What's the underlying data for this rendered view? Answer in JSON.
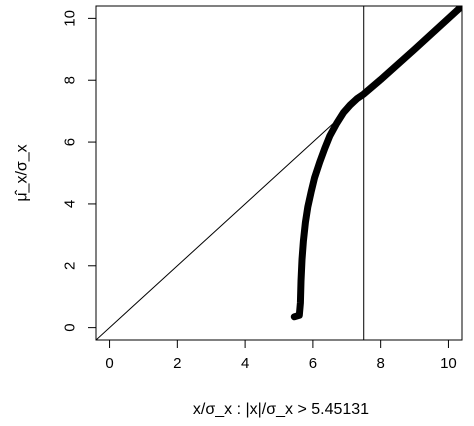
{
  "chart_data": {
    "type": "line",
    "title": "",
    "xlabel": "x/σ_x : |x|/σ_x > 5.45131",
    "ylabel": "μ̂_x/σ_x",
    "xlim": [
      -0.4,
      10.4
    ],
    "ylim": [
      -0.4,
      10.4
    ],
    "x_ticks": [
      0,
      2,
      4,
      6,
      8,
      10
    ],
    "y_ticks": [
      0,
      2,
      4,
      6,
      8,
      10
    ],
    "grid": false,
    "legend": "none",
    "reference_lines": {
      "identity_line": {
        "slope": 1,
        "intercept": 0
      },
      "vertical_line_x": 7.5
    },
    "series": [
      {
        "points": [
          [
            5.45,
            0.35
          ],
          [
            5.6,
            0.4
          ],
          [
            5.63,
            0.8
          ],
          [
            5.65,
            1.5
          ],
          [
            5.68,
            2.2
          ],
          [
            5.72,
            2.8
          ],
          [
            5.78,
            3.4
          ],
          [
            5.85,
            3.9
          ],
          [
            5.95,
            4.4
          ],
          [
            6.05,
            4.85
          ],
          [
            6.2,
            5.35
          ],
          [
            6.35,
            5.8
          ],
          [
            6.5,
            6.2
          ],
          [
            6.7,
            6.6
          ],
          [
            6.9,
            6.95
          ],
          [
            7.1,
            7.2
          ],
          [
            7.3,
            7.4
          ],
          [
            7.5,
            7.55
          ],
          [
            8.0,
            8.02
          ],
          [
            9.0,
            9.0
          ],
          [
            10.0,
            10.0
          ],
          [
            10.4,
            10.4
          ]
        ]
      }
    ],
    "colors": {
      "line": "#000000",
      "background": "#ffffff"
    }
  }
}
